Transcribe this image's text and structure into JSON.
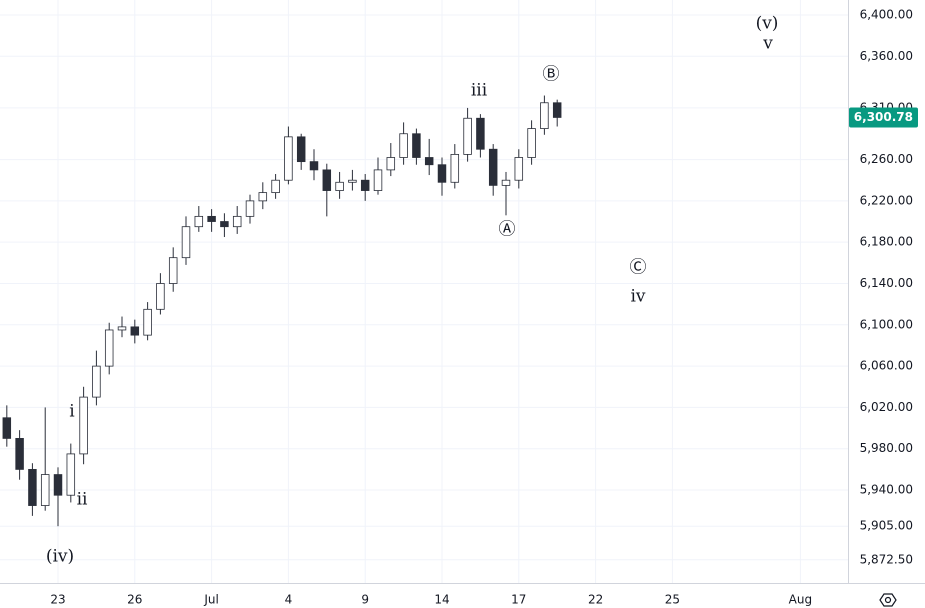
{
  "chart_data": {
    "type": "candlestick",
    "x": [
      -2,
      -1.5,
      -1,
      -0.5,
      0,
      0.5,
      1,
      1.5,
      2,
      2.5,
      3,
      3.5,
      4,
      4.5,
      5,
      5.5,
      6,
      6.5,
      7,
      7.5,
      8,
      8.5,
      9,
      9.5,
      10,
      10.5,
      11,
      11.5,
      12,
      12.5,
      13,
      13.5,
      14,
      14.5,
      15,
      15.5,
      16,
      16.5,
      17,
      17.5,
      18,
      18.5,
      19,
      19.5
    ],
    "open": [
      6010,
      5990,
      5960,
      5925,
      5955,
      5935,
      5975,
      6030,
      6060,
      6095,
      6098,
      6090,
      6115,
      6140,
      6165,
      6195,
      6205,
      6200,
      6195,
      6205,
      6220,
      6228,
      6240,
      6282,
      6258,
      6250,
      6230,
      6238,
      6240,
      6230,
      6250,
      6262,
      6285,
      6262,
      6255,
      6238,
      6265,
      6300,
      6270,
      6235,
      6240,
      6262,
      6290,
      6315
    ],
    "high": [
      6022,
      5998,
      5966,
      6020,
      5962,
      5985,
      6040,
      6075,
      6102,
      6108,
      6105,
      6122,
      6150,
      6175,
      6205,
      6215,
      6212,
      6208,
      6215,
      6226,
      6238,
      6246,
      6292,
      6285,
      6270,
      6256,
      6248,
      6250,
      6246,
      6262,
      6276,
      6296,
      6290,
      6280,
      6262,
      6275,
      6310,
      6304,
      6275,
      6248,
      6270,
      6298,
      6322,
      6318
    ],
    "low": [
      5982,
      5950,
      5915,
      5920,
      5905,
      5928,
      5965,
      6022,
      6052,
      6088,
      6082,
      6085,
      6110,
      6132,
      6158,
      6190,
      6190,
      6185,
      6188,
      6198,
      6212,
      6222,
      6236,
      6250,
      6240,
      6205,
      6222,
      6230,
      6220,
      6226,
      6244,
      6255,
      6255,
      6245,
      6225,
      6232,
      6258,
      6262,
      6225,
      6206,
      6232,
      6255,
      6284,
      6292
    ],
    "close": [
      5990,
      5960,
      5925,
      5955,
      5935,
      5975,
      6030,
      6060,
      6095,
      6098,
      6090,
      6115,
      6140,
      6165,
      6195,
      6205,
      6200,
      6195,
      6205,
      6220,
      6228,
      6240,
      6282,
      6258,
      6250,
      6230,
      6238,
      6240,
      6230,
      6250,
      6262,
      6285,
      6262,
      6255,
      6238,
      6265,
      6300,
      6270,
      6235,
      6240,
      6262,
      6290,
      6315,
      6300.78
    ],
    "up_color": "#ffffff",
    "down_color": "#2a2e39",
    "wick_color": "#2a2e39",
    "xlim": [
      -2.266,
      30.86
    ],
    "xticks": [
      {
        "value": 0,
        "label": "23"
      },
      {
        "value": 3,
        "label": "26"
      },
      {
        "value": 6,
        "label": "Jul"
      },
      {
        "value": 9,
        "label": "4"
      },
      {
        "value": 12,
        "label": "9"
      },
      {
        "value": 15,
        "label": "14"
      },
      {
        "value": 18,
        "label": "17"
      },
      {
        "value": 21,
        "label": "22"
      },
      {
        "value": 24,
        "label": "25"
      },
      {
        "value": 29,
        "label": "Aug"
      }
    ],
    "ylim": [
      5850,
      6414.5
    ],
    "yticks": [
      {
        "value": 6400,
        "label": "6,400.00"
      },
      {
        "value": 6360,
        "label": "6,360.00"
      },
      {
        "value": 6310,
        "label": "6,310.00"
      },
      {
        "value": 6260,
        "label": "6,260.00"
      },
      {
        "value": 6220,
        "label": "6,220.00"
      },
      {
        "value": 6180,
        "label": "6,180.00"
      },
      {
        "value": 6140,
        "label": "6,140.00"
      },
      {
        "value": 6100,
        "label": "6,100.00"
      },
      {
        "value": 6060,
        "label": "6,060.00"
      },
      {
        "value": 6020,
        "label": "6,020.00"
      },
      {
        "value": 5980,
        "label": "5,980.00"
      },
      {
        "value": 5940,
        "label": "5,940.00"
      },
      {
        "value": 5905,
        "label": "5,905.00"
      },
      {
        "value": 5872.5,
        "label": "5,872.50"
      }
    ],
    "grid": true,
    "last_price": {
      "value": 6300.78,
      "label": "6,300.78",
      "color": "#089981"
    },
    "annotations": [
      "(v)",
      "v",
      "Ⓑ",
      "iii",
      "Ⓐ",
      "Ⓒ",
      "iv",
      "i",
      "ii",
      "(iv)"
    ]
  }
}
